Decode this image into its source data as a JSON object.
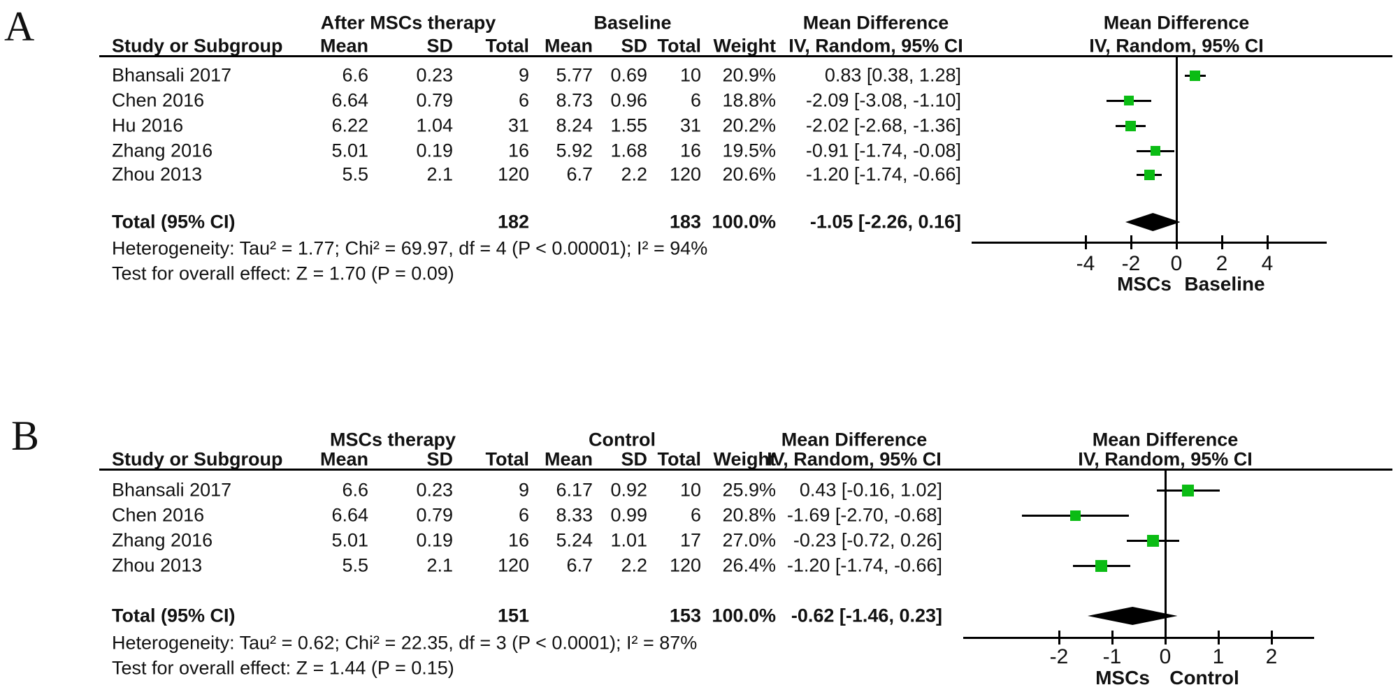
{
  "figure_type": "forest-plot-meta-analysis",
  "colors": {
    "marker_green": "#0bbc14",
    "line_black": "#000000",
    "text": "#111111"
  },
  "chart_data": [
    {
      "type": "forest",
      "panel_label": "A",
      "group1_header": "After MSCs therapy",
      "group2_header": "Baseline",
      "study_col_header": "Study or Subgroup",
      "sub_headers": [
        "Mean",
        "SD",
        "Total",
        "Mean",
        "SD",
        "Total",
        "Weight"
      ],
      "md_col_header": [
        "Mean Difference",
        "IV, Random, 95% CI"
      ],
      "plot_header": [
        "Mean Difference",
        "IV, Random, 95% CI"
      ],
      "rows": [
        {
          "study": "Bhansali 2017",
          "mean1": "6.6",
          "sd1": "0.23",
          "total1": "9",
          "mean2": "5.77",
          "sd2": "0.69",
          "total2": "10",
          "weight": "20.9%",
          "md_ci": "0.83 [0.38, 1.28]",
          "md": 0.83,
          "lo": 0.38,
          "hi": 1.28
        },
        {
          "study": "Chen 2016",
          "mean1": "6.64",
          "sd1": "0.79",
          "total1": "6",
          "mean2": "8.73",
          "sd2": "0.96",
          "total2": "6",
          "weight": "18.8%",
          "md_ci": "-2.09 [-3.08, -1.10]",
          "md": -2.09,
          "lo": -3.08,
          "hi": -1.1
        },
        {
          "study": "Hu 2016",
          "mean1": "6.22",
          "sd1": "1.04",
          "total1": "31",
          "mean2": "8.24",
          "sd2": "1.55",
          "total2": "31",
          "weight": "20.2%",
          "md_ci": "-2.02 [-2.68, -1.36]",
          "md": -2.02,
          "lo": -2.68,
          "hi": -1.36
        },
        {
          "study": "Zhang 2016",
          "mean1": "5.01",
          "sd1": "0.19",
          "total1": "16",
          "mean2": "5.92",
          "sd2": "1.68",
          "total2": "16",
          "weight": "19.5%",
          "md_ci": "-0.91 [-1.74, -0.08]",
          "md": -0.91,
          "lo": -1.74,
          "hi": -0.08
        },
        {
          "study": "Zhou 2013",
          "mean1": "5.5",
          "sd1": "2.1",
          "total1": "120",
          "mean2": "6.7",
          "sd2": "2.2",
          "total2": "120",
          "weight": "20.6%",
          "md_ci": "-1.20 [-1.74, -0.66]",
          "md": -1.2,
          "lo": -1.74,
          "hi": -0.66
        }
      ],
      "total_row": {
        "label": "Total (95% CI)",
        "total1": "182",
        "total2": "183",
        "weight": "100.0%",
        "md_ci": "-1.05 [-2.26, 0.16]",
        "md": -1.05,
        "lo": -2.26,
        "hi": 0.16
      },
      "heterogeneity": "Heterogeneity: Tau² = 1.77; Chi² = 69.97, df = 4 (P < 0.00001); I² = 94%",
      "overall_effect": "Test for overall effect: Z = 1.70 (P = 0.09)",
      "axis": {
        "ticks": [
          -4,
          -2,
          0,
          2,
          4
        ],
        "tick_labels": [
          "-4",
          "-2",
          "0",
          "2",
          "4"
        ],
        "favours_left": "MSCs",
        "favours_right": "Baseline"
      }
    },
    {
      "type": "forest",
      "panel_label": "B",
      "group1_header": "MSCs therapy",
      "group2_header": "Control",
      "study_col_header": "Study or Subgroup",
      "sub_headers": [
        "Mean",
        "SD",
        "Total",
        "Mean",
        "SD",
        "Total",
        "Weight"
      ],
      "md_col_header": [
        "Mean Difference",
        "IV, Random, 95% CI"
      ],
      "plot_header": [
        "Mean Difference",
        "IV, Random, 95% CI"
      ],
      "rows": [
        {
          "study": "Bhansali 2017",
          "mean1": "6.6",
          "sd1": "0.23",
          "total1": "9",
          "mean2": "6.17",
          "sd2": "0.92",
          "total2": "10",
          "weight": "25.9%",
          "md_ci": "0.43 [-0.16, 1.02]",
          "md": 0.43,
          "lo": -0.16,
          "hi": 1.02
        },
        {
          "study": "Chen 2016",
          "mean1": "6.64",
          "sd1": "0.79",
          "total1": "6",
          "mean2": "8.33",
          "sd2": "0.99",
          "total2": "6",
          "weight": "20.8%",
          "md_ci": "-1.69 [-2.70, -0.68]",
          "md": -1.69,
          "lo": -2.7,
          "hi": -0.68
        },
        {
          "study": "Zhang 2016",
          "mean1": "5.01",
          "sd1": "0.19",
          "total1": "16",
          "mean2": "5.24",
          "sd2": "1.01",
          "total2": "17",
          "weight": "27.0%",
          "md_ci": "-0.23 [-0.72, 0.26]",
          "md": -0.23,
          "lo": -0.72,
          "hi": 0.26
        },
        {
          "study": "Zhou 2013",
          "mean1": "5.5",
          "sd1": "2.1",
          "total1": "120",
          "mean2": "6.7",
          "sd2": "2.2",
          "total2": "120",
          "weight": "26.4%",
          "md_ci": "-1.20 [-1.74, -0.66]",
          "md": -1.2,
          "lo": -1.74,
          "hi": -0.66
        }
      ],
      "total_row": {
        "label": "Total (95% CI)",
        "total1": "151",
        "total2": "153",
        "weight": "100.0%",
        "md_ci": "-0.62 [-1.46, 0.23]",
        "md": -0.62,
        "lo": -1.46,
        "hi": 0.23
      },
      "heterogeneity": "Heterogeneity: Tau² = 0.62; Chi² = 22.35, df = 3 (P < 0.0001); I² = 87%",
      "overall_effect": "Test for overall effect: Z = 1.44 (P = 0.15)",
      "axis": {
        "ticks": [
          -2,
          -1,
          0,
          1,
          2
        ],
        "tick_labels": [
          "-2",
          "-1",
          "0",
          "1",
          "2"
        ],
        "favours_left": "MSCs",
        "favours_right": "Control"
      }
    }
  ]
}
